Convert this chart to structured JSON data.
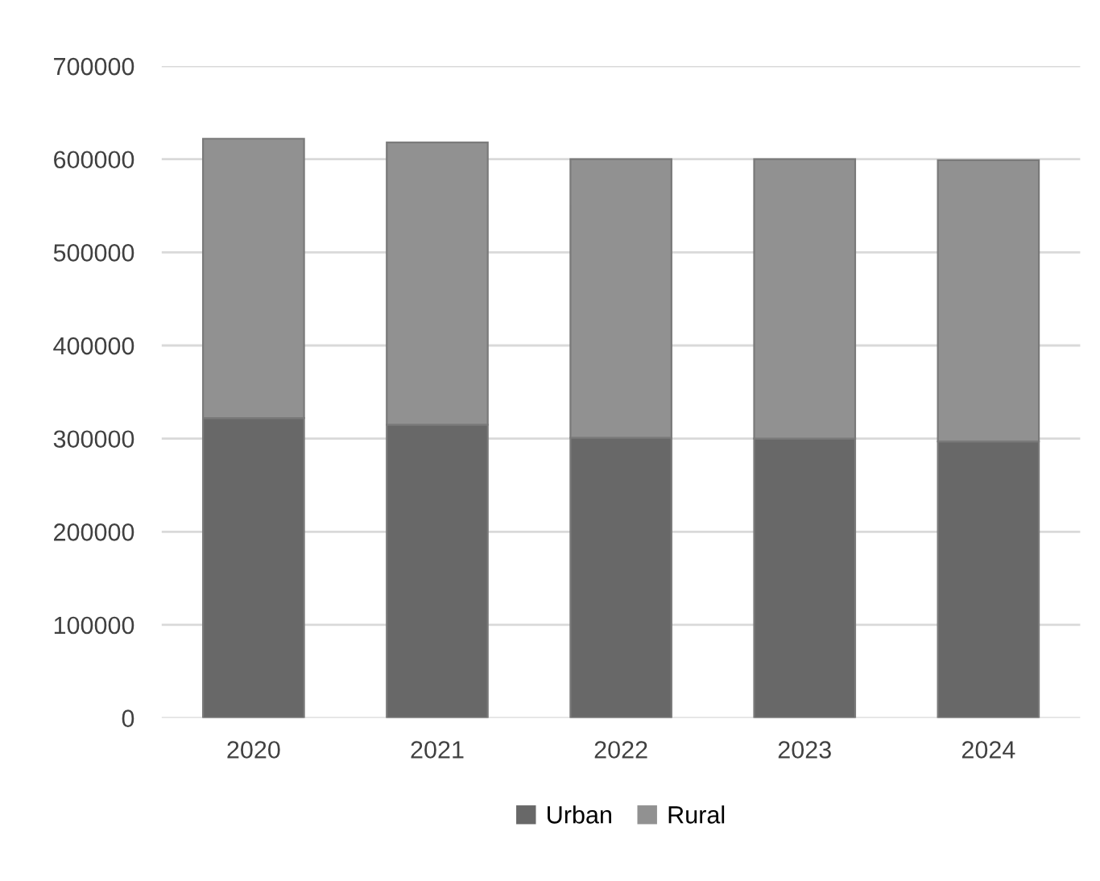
{
  "chart_data": {
    "type": "bar",
    "stacked": true,
    "categories": [
      "2020",
      "2021",
      "2022",
      "2023",
      "2024"
    ],
    "series": [
      {
        "name": "Urban",
        "color": "#686868",
        "values": [
          322000,
          315000,
          301000,
          300000,
          297000
        ]
      },
      {
        "name": "Rural",
        "color": "#919191",
        "values": [
          300000,
          303000,
          299000,
          300000,
          302000
        ]
      }
    ],
    "ylim": [
      0,
      700000
    ],
    "yticks": [
      0,
      100000,
      200000,
      300000,
      400000,
      500000,
      600000,
      700000
    ],
    "grid": "y",
    "legend": "bottom"
  }
}
